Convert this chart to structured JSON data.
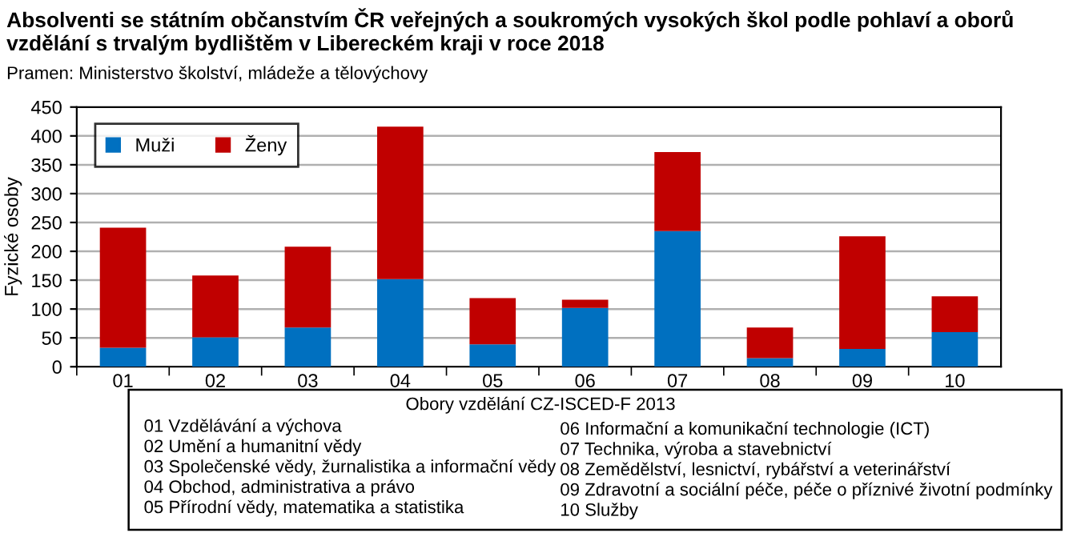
{
  "chart_data": {
    "type": "bar",
    "stacked": true,
    "title": "Absolventi se státním občanstvím ČR veřejných a soukromých vysokých škol podle pohlaví a oborů vzdělání s trvalým bydlištěm v Libereckém kraji v roce 2018",
    "subtitle": "Pramen: Ministerstvo školství, mládeže a tělovýchovy",
    "ylabel": "Fyzické osoby",
    "xlabel": "Obory vzdělání CZ-ISCED-F 2013",
    "categories": [
      "01",
      "02",
      "03",
      "04",
      "05",
      "06",
      "07",
      "08",
      "09",
      "10"
    ],
    "series": [
      {
        "name": "Muži",
        "color": "#0070c0",
        "values": [
          33,
          51,
          68,
          152,
          39,
          102,
          235,
          15,
          31,
          60
        ]
      },
      {
        "name": "Ženy",
        "color": "#c00000",
        "values": [
          208,
          107,
          140,
          264,
          80,
          14,
          137,
          53,
          195,
          62
        ]
      }
    ],
    "ylim": [
      0,
      450
    ],
    "yticks": [
      0,
      50,
      100,
      150,
      200,
      250,
      300,
      350,
      400,
      450
    ],
    "grid": "y",
    "legend": "top left",
    "annotations": [
      "01 Vzdělávání a výchova",
      "02 Umění a humanitní vědy",
      "03 Společenské vědy, žurnalistika a informační vědy",
      "04 Obchod, administrativa a právo",
      "05 Přírodní vědy, matematika a statistika",
      "06 Informační a komunikační technologie (ICT)",
      "07 Technika, výroba a stavebnictví",
      "08 Zemědělství, lesnictví, rybářství a veterinářství",
      "09 Zdravotní a sociální péče, péče o příznivé životní podmínky",
      "10 Služby"
    ]
  }
}
